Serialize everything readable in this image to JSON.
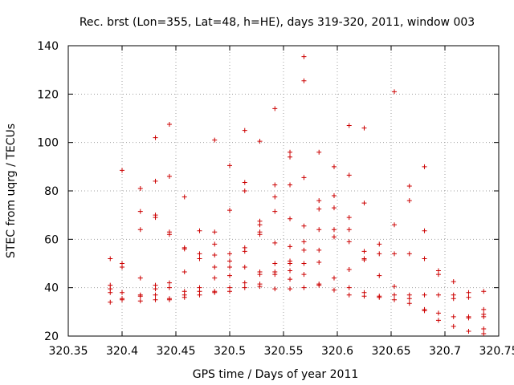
{
  "chart_data": {
    "type": "scatter",
    "title": "Rec. brst (Lon=355, Lat=48, h=HE), days 319-320, 2011, window 003",
    "xlabel": "GPS time / Days of year 2011",
    "ylabel": "STEC from uqrg / TECUs",
    "xlim": [
      320.35,
      320.75
    ],
    "ylim": [
      20,
      140
    ],
    "xticks": [
      320.35,
      320.4,
      320.45,
      320.5,
      320.55,
      320.6,
      320.65,
      320.7,
      320.75
    ],
    "xtick_labels": [
      "320.35",
      "320.4",
      "320.45",
      "320.5",
      "320.55",
      "320.6",
      "320.65",
      "320.7",
      "320.75"
    ],
    "yticks": [
      20,
      40,
      60,
      80,
      100,
      120,
      140
    ],
    "ytick_labels": [
      "20",
      "40",
      "60",
      "80",
      "100",
      "120",
      "140"
    ],
    "grid": true,
    "marker": "plus",
    "color": "#cc0000",
    "points": [
      [
        320.389,
        52
      ],
      [
        320.389,
        41
      ],
      [
        320.389,
        39.5
      ],
      [
        320.389,
        38
      ],
      [
        320.389,
        34
      ],
      [
        320.4,
        88.5
      ],
      [
        320.4,
        50
      ],
      [
        320.4,
        48.5
      ],
      [
        320.4,
        38
      ],
      [
        320.4,
        35.5
      ],
      [
        320.4,
        35
      ],
      [
        320.417,
        81
      ],
      [
        320.417,
        71.5
      ],
      [
        320.417,
        64
      ],
      [
        320.417,
        44
      ],
      [
        320.417,
        37
      ],
      [
        320.417,
        36.5
      ],
      [
        320.417,
        34.5
      ],
      [
        320.431,
        102
      ],
      [
        320.431,
        84
      ],
      [
        320.431,
        70
      ],
      [
        320.431,
        69
      ],
      [
        320.431,
        41
      ],
      [
        320.431,
        39.5
      ],
      [
        320.431,
        37
      ],
      [
        320.431,
        35
      ],
      [
        320.444,
        107.5
      ],
      [
        320.444,
        86
      ],
      [
        320.444,
        63
      ],
      [
        320.444,
        62
      ],
      [
        320.444,
        42
      ],
      [
        320.444,
        40
      ],
      [
        320.444,
        35.5
      ],
      [
        320.444,
        35
      ],
      [
        320.458,
        77.5
      ],
      [
        320.458,
        56.5
      ],
      [
        320.458,
        56
      ],
      [
        320.458,
        46.5
      ],
      [
        320.458,
        38.5
      ],
      [
        320.458,
        37
      ],
      [
        320.458,
        36
      ],
      [
        320.472,
        63.5
      ],
      [
        320.472,
        54
      ],
      [
        320.472,
        52
      ],
      [
        320.472,
        40
      ],
      [
        320.472,
        38.5
      ],
      [
        320.472,
        37
      ],
      [
        320.486,
        101
      ],
      [
        320.486,
        63
      ],
      [
        320.486,
        58
      ],
      [
        320.486,
        53.5
      ],
      [
        320.486,
        48.5
      ],
      [
        320.486,
        44
      ],
      [
        320.486,
        38.5
      ],
      [
        320.486,
        38
      ],
      [
        320.5,
        90.5
      ],
      [
        320.5,
        72
      ],
      [
        320.5,
        54
      ],
      [
        320.5,
        51
      ],
      [
        320.5,
        48.5
      ],
      [
        320.5,
        45
      ],
      [
        320.5,
        40
      ],
      [
        320.5,
        38.5
      ],
      [
        320.514,
        105
      ],
      [
        320.514,
        83.5
      ],
      [
        320.514,
        80
      ],
      [
        320.514,
        56.5
      ],
      [
        320.514,
        55
      ],
      [
        320.514,
        48.5
      ],
      [
        320.514,
        42
      ],
      [
        320.514,
        40
      ],
      [
        320.528,
        100.5
      ],
      [
        320.528,
        67.5
      ],
      [
        320.528,
        66
      ],
      [
        320.528,
        63
      ],
      [
        320.528,
        62
      ],
      [
        320.528,
        46.5
      ],
      [
        320.528,
        45.5
      ],
      [
        320.528,
        41.5
      ],
      [
        320.528,
        40.5
      ],
      [
        320.542,
        114
      ],
      [
        320.542,
        82.5
      ],
      [
        320.542,
        77.5
      ],
      [
        320.542,
        71.5
      ],
      [
        320.542,
        58.5
      ],
      [
        320.542,
        50
      ],
      [
        320.542,
        46.5
      ],
      [
        320.542,
        45.5
      ],
      [
        320.542,
        39.5
      ],
      [
        320.556,
        96
      ],
      [
        320.556,
        94
      ],
      [
        320.556,
        82.5
      ],
      [
        320.556,
        68.5
      ],
      [
        320.556,
        57
      ],
      [
        320.556,
        51
      ],
      [
        320.556,
        50
      ],
      [
        320.556,
        47
      ],
      [
        320.556,
        43.5
      ],
      [
        320.556,
        39.5
      ],
      [
        320.569,
        135.5
      ],
      [
        320.569,
        125.5
      ],
      [
        320.569,
        85.5
      ],
      [
        320.569,
        65.5
      ],
      [
        320.569,
        59
      ],
      [
        320.569,
        55.5
      ],
      [
        320.569,
        50
      ],
      [
        320.569,
        45.5
      ],
      [
        320.569,
        40
      ],
      [
        320.583,
        96
      ],
      [
        320.583,
        76
      ],
      [
        320.583,
        72.5
      ],
      [
        320.583,
        64
      ],
      [
        320.583,
        55.5
      ],
      [
        320.583,
        50.5
      ],
      [
        320.583,
        41.5
      ],
      [
        320.583,
        41
      ],
      [
        320.597,
        90
      ],
      [
        320.597,
        78
      ],
      [
        320.597,
        73
      ],
      [
        320.597,
        64
      ],
      [
        320.597,
        61
      ],
      [
        320.597,
        44
      ],
      [
        320.597,
        39
      ],
      [
        320.611,
        107
      ],
      [
        320.611,
        86.5
      ],
      [
        320.611,
        69
      ],
      [
        320.611,
        64
      ],
      [
        320.611,
        59
      ],
      [
        320.611,
        47.5
      ],
      [
        320.611,
        40
      ],
      [
        320.611,
        37
      ],
      [
        320.625,
        106
      ],
      [
        320.625,
        75
      ],
      [
        320.625,
        55
      ],
      [
        320.625,
        52
      ],
      [
        320.625,
        51.5
      ],
      [
        320.625,
        38
      ],
      [
        320.625,
        36.5
      ],
      [
        320.639,
        58
      ],
      [
        320.639,
        54
      ],
      [
        320.639,
        45
      ],
      [
        320.639,
        36.5
      ],
      [
        320.639,
        36
      ],
      [
        320.653,
        121
      ],
      [
        320.653,
        66
      ],
      [
        320.653,
        54
      ],
      [
        320.653,
        40.5
      ],
      [
        320.653,
        37
      ],
      [
        320.653,
        35
      ],
      [
        320.667,
        82
      ],
      [
        320.667,
        76
      ],
      [
        320.667,
        54
      ],
      [
        320.667,
        37
      ],
      [
        320.667,
        35.5
      ],
      [
        320.667,
        33.5
      ],
      [
        320.681,
        90
      ],
      [
        320.681,
        63.5
      ],
      [
        320.681,
        52
      ],
      [
        320.681,
        37
      ],
      [
        320.681,
        31
      ],
      [
        320.681,
        30.5
      ],
      [
        320.694,
        47
      ],
      [
        320.694,
        45.5
      ],
      [
        320.694,
        37
      ],
      [
        320.694,
        29.5
      ],
      [
        320.694,
        26.5
      ],
      [
        320.708,
        42.5
      ],
      [
        320.708,
        37
      ],
      [
        320.708,
        35.5
      ],
      [
        320.708,
        28
      ],
      [
        320.708,
        24
      ],
      [
        320.722,
        38
      ],
      [
        320.722,
        36
      ],
      [
        320.722,
        28
      ],
      [
        320.722,
        27.5
      ],
      [
        320.722,
        22
      ],
      [
        320.736,
        38.5
      ],
      [
        320.736,
        31
      ],
      [
        320.736,
        29
      ],
      [
        320.736,
        28
      ],
      [
        320.736,
        23
      ],
      [
        320.736,
        21
      ]
    ]
  }
}
